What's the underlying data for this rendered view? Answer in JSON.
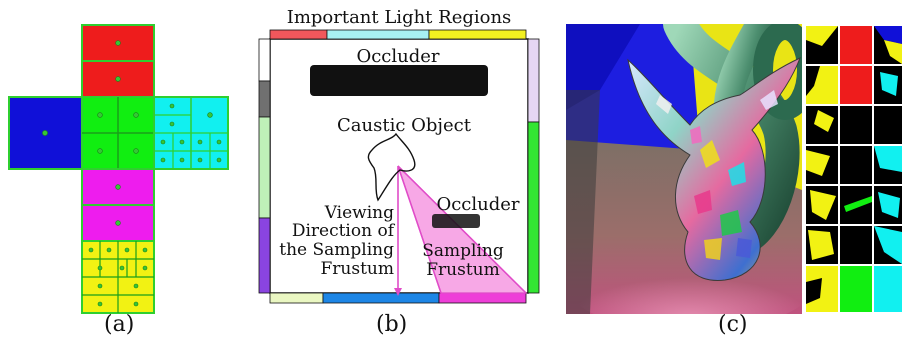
{
  "captions": {
    "a": "(a)",
    "b": "(b)",
    "c": "(c)"
  },
  "panel_b": {
    "title": "Important Light Regions",
    "occluder_top": "Occluder",
    "occluder_right": "Occluder",
    "caustic_object": "Caustic Object",
    "viewing_line1": "Viewing",
    "viewing_line2": "Direction of",
    "viewing_line3": "the Sampling",
    "viewing_line4": "Frustum",
    "sampling_line1": "Sampling",
    "sampling_line2": "Frustum"
  },
  "colors": {
    "red": "#ee1c1c",
    "blue": "#1010d8",
    "green": "#11ee11",
    "cyan": "#11f0f0",
    "magenta": "#ee1cee",
    "yellow": "#f2f213",
    "frustum_pink": "#f06fd6"
  }
}
